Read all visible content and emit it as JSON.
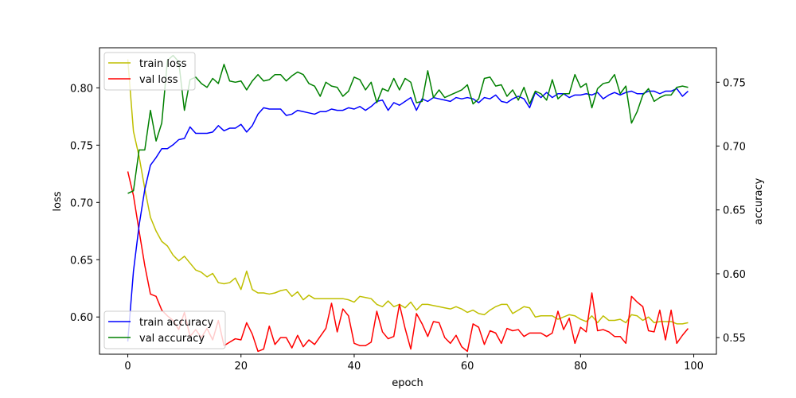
{
  "chart_data": {
    "type": "line",
    "xlabel": "epoch",
    "ylabel_left": "loss",
    "ylabel_right": "accuracy",
    "xlim": [
      -5,
      104
    ],
    "ylim_left": [
      0.5675,
      0.835
    ],
    "ylim_right": [
      0.537,
      0.777
    ],
    "x_ticks": [
      0,
      20,
      40,
      60,
      80,
      100
    ],
    "y_ticks_left": [
      0.6,
      0.65,
      0.7,
      0.75,
      0.8
    ],
    "y_ticks_left_labels": [
      "0.60",
      "0.65",
      "0.70",
      "0.75",
      "0.80"
    ],
    "y_ticks_right": [
      0.55,
      0.6,
      0.65,
      0.7,
      0.75
    ],
    "y_ticks_right_labels": [
      "0.55",
      "0.60",
      "0.65",
      "0.70",
      "0.75"
    ],
    "grid": false,
    "legend_loss_position": "top-left",
    "legend_accuracy_position": "bottom-left",
    "series": [
      {
        "name": "train loss",
        "axis": "left",
        "color": "#bfbf00",
        "values": [
          0.825,
          0.762,
          0.74,
          0.712,
          0.687,
          0.675,
          0.666,
          0.662,
          0.654,
          0.649,
          0.653,
          0.647,
          0.641,
          0.639,
          0.635,
          0.638,
          0.63,
          0.629,
          0.63,
          0.634,
          0.624,
          0.64,
          0.624,
          0.621,
          0.621,
          0.62,
          0.621,
          0.623,
          0.624,
          0.618,
          0.622,
          0.615,
          0.619,
          0.616,
          0.616,
          0.616,
          0.616,
          0.616,
          0.616,
          0.615,
          0.613,
          0.618,
          0.617,
          0.616,
          0.611,
          0.609,
          0.614,
          0.609,
          0.611,
          0.608,
          0.613,
          0.606,
          0.611,
          0.611,
          0.61,
          0.609,
          0.608,
          0.607,
          0.609,
          0.607,
          0.604,
          0.606,
          0.603,
          0.602,
          0.606,
          0.609,
          0.611,
          0.611,
          0.603,
          0.606,
          0.609,
          0.608,
          0.6,
          0.601,
          0.601,
          0.601,
          0.598,
          0.6,
          0.602,
          0.601,
          0.598,
          0.596,
          0.601,
          0.595,
          0.601,
          0.597,
          0.597,
          0.598,
          0.595,
          0.602,
          0.601,
          0.597,
          0.6,
          0.595,
          0.596,
          0.596,
          0.596,
          0.594,
          0.594,
          0.595
        ]
      },
      {
        "name": "val loss",
        "axis": "left",
        "color": "#ff0000",
        "values": [
          0.727,
          0.706,
          0.675,
          0.645,
          0.62,
          0.618,
          0.606,
          0.601,
          0.597,
          0.589,
          0.604,
          0.583,
          0.589,
          0.582,
          0.59,
          0.58,
          0.597,
          0.575,
          0.578,
          0.581,
          0.58,
          0.595,
          0.585,
          0.57,
          0.572,
          0.592,
          0.576,
          0.582,
          0.582,
          0.573,
          0.584,
          0.574,
          0.58,
          0.576,
          0.583,
          0.59,
          0.612,
          0.587,
          0.607,
          0.601,
          0.577,
          0.575,
          0.575,
          0.578,
          0.605,
          0.587,
          0.581,
          0.583,
          0.611,
          0.59,
          0.572,
          0.603,
          0.594,
          0.583,
          0.596,
          0.595,
          0.582,
          0.577,
          0.584,
          0.574,
          0.57,
          0.594,
          0.591,
          0.576,
          0.588,
          0.586,
          0.577,
          0.59,
          0.588,
          0.589,
          0.583,
          0.586,
          0.586,
          0.586,
          0.583,
          0.586,
          0.605,
          0.589,
          0.599,
          0.577,
          0.591,
          0.587,
          0.621,
          0.588,
          0.589,
          0.587,
          0.583,
          0.583,
          0.577,
          0.618,
          0.613,
          0.609,
          0.588,
          0.587,
          0.606,
          0.58,
          0.606,
          0.577,
          0.584,
          0.59
        ]
      },
      {
        "name": "train accuracy",
        "axis": "right",
        "color": "#0000ff",
        "values": [
          0.547,
          0.602,
          0.638,
          0.666,
          0.685,
          0.691,
          0.698,
          0.698,
          0.701,
          0.705,
          0.706,
          0.715,
          0.71,
          0.71,
          0.71,
          0.711,
          0.716,
          0.712,
          0.714,
          0.714,
          0.717,
          0.711,
          0.716,
          0.725,
          0.73,
          0.729,
          0.729,
          0.729,
          0.724,
          0.725,
          0.728,
          0.727,
          0.726,
          0.725,
          0.727,
          0.727,
          0.729,
          0.728,
          0.728,
          0.73,
          0.729,
          0.731,
          0.728,
          0.731,
          0.735,
          0.736,
          0.728,
          0.734,
          0.732,
          0.735,
          0.738,
          0.728,
          0.737,
          0.735,
          0.738,
          0.737,
          0.736,
          0.735,
          0.738,
          0.737,
          0.738,
          0.737,
          0.734,
          0.738,
          0.737,
          0.74,
          0.735,
          0.734,
          0.737,
          0.739,
          0.737,
          0.73,
          0.742,
          0.738,
          0.742,
          0.738,
          0.741,
          0.741,
          0.738,
          0.74,
          0.74,
          0.741,
          0.74,
          0.742,
          0.737,
          0.74,
          0.742,
          0.74,
          0.742,
          0.743,
          0.741,
          0.741,
          0.743,
          0.743,
          0.741,
          0.743,
          0.743,
          0.745,
          0.739,
          0.743
        ]
      },
      {
        "name": "val accuracy",
        "axis": "right",
        "color": "#008000",
        "values": [
          0.663,
          0.665,
          0.697,
          0.697,
          0.728,
          0.704,
          0.718,
          0.767,
          0.771,
          0.766,
          0.728,
          0.752,
          0.754,
          0.749,
          0.746,
          0.753,
          0.749,
          0.764,
          0.751,
          0.75,
          0.751,
          0.744,
          0.751,
          0.756,
          0.751,
          0.752,
          0.756,
          0.756,
          0.751,
          0.755,
          0.758,
          0.756,
          0.749,
          0.747,
          0.739,
          0.75,
          0.747,
          0.746,
          0.739,
          0.743,
          0.754,
          0.752,
          0.744,
          0.75,
          0.734,
          0.745,
          0.743,
          0.753,
          0.744,
          0.753,
          0.75,
          0.734,
          0.735,
          0.759,
          0.738,
          0.744,
          0.738,
          0.74,
          0.742,
          0.744,
          0.748,
          0.733,
          0.737,
          0.753,
          0.754,
          0.747,
          0.748,
          0.739,
          0.744,
          0.736,
          0.746,
          0.733,
          0.743,
          0.741,
          0.736,
          0.752,
          0.737,
          0.741,
          0.741,
          0.756,
          0.746,
          0.749,
          0.73,
          0.745,
          0.749,
          0.75,
          0.756,
          0.741,
          0.747,
          0.718,
          0.727,
          0.74,
          0.745,
          0.735,
          0.738,
          0.74,
          0.74,
          0.746,
          0.747,
          0.746
        ]
      }
    ]
  }
}
